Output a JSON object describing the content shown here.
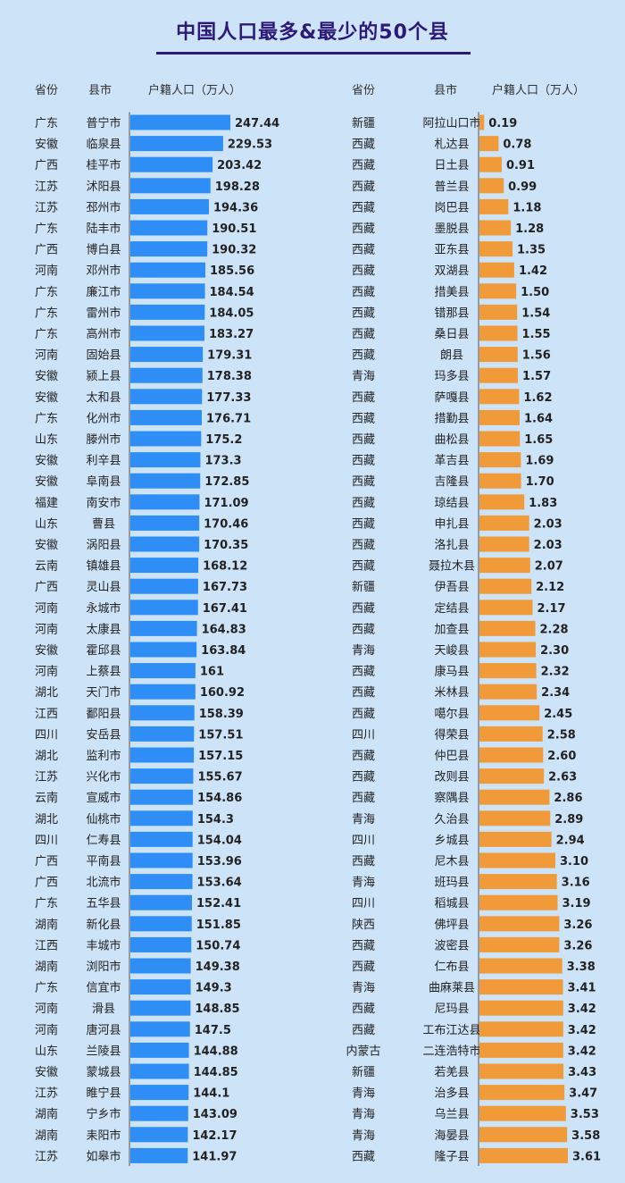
{
  "title": "中国人口最多&最少的50个县",
  "colors": {
    "title": "#2d1a78",
    "background": "#cde3f7",
    "bar_most": "#2f8ef5",
    "bar_least": "#f09a3a",
    "text": "#222222",
    "header": "#333333",
    "axis": "#555555"
  },
  "chart_data": [
    {
      "type": "bar",
      "orientation": "horizontal",
      "headers": [
        "省份",
        "县市",
        "户籍人口（万人）"
      ],
      "provinces": [
        "广东",
        "安徽",
        "广西",
        "江苏",
        "江苏",
        "广东",
        "广西",
        "河南",
        "广东",
        "广东",
        "广东",
        "河南",
        "安徽",
        "安徽",
        "广东",
        "山东",
        "安徽",
        "安徽",
        "福建",
        "山东",
        "安徽",
        "云南",
        "广西",
        "河南",
        "河南",
        "安徽",
        "河南",
        "湖北",
        "江西",
        "四川",
        "湖北",
        "江苏",
        "云南",
        "湖北",
        "四川",
        "广西",
        "广西",
        "广东",
        "湖南",
        "江西",
        "湖南",
        "广东",
        "河南",
        "河南",
        "山东",
        "安徽",
        "江苏",
        "湖南",
        "湖南",
        "江苏"
      ],
      "categories": [
        "普宁市",
        "临泉县",
        "桂平市",
        "沭阳县",
        "邳州市",
        "陆丰市",
        "博白县",
        "邓州市",
        "廉江市",
        "雷州市",
        "高州市",
        "固始县",
        "颍上县",
        "太和县",
        "化州市",
        "滕州市",
        "利辛县",
        "阜南县",
        "南安市",
        "曹县",
        "涡阳县",
        "镇雄县",
        "灵山县",
        "永城市",
        "太康县",
        "霍邱县",
        "上蔡县",
        "天门市",
        "鄱阳县",
        "安岳县",
        "监利市",
        "兴化市",
        "宣威市",
        "仙桃市",
        "仁寿县",
        "平南县",
        "北流市",
        "五华县",
        "新化县",
        "丰城市",
        "浏阳市",
        "信宜市",
        "滑县",
        "唐河县",
        "兰陵县",
        "蒙城县",
        "睢宁县",
        "宁乡市",
        "耒阳市",
        "如皋市"
      ],
      "values": [
        247.44,
        229.53,
        203.42,
        198.28,
        194.36,
        190.51,
        190.32,
        185.56,
        184.54,
        184.05,
        183.27,
        179.31,
        178.38,
        177.33,
        176.71,
        175.2,
        173.3,
        172.85,
        171.09,
        170.46,
        170.35,
        168.12,
        167.73,
        167.41,
        164.83,
        163.84,
        161,
        160.92,
        158.39,
        157.51,
        157.15,
        155.67,
        154.86,
        154.3,
        154.04,
        153.96,
        153.64,
        152.41,
        151.85,
        150.74,
        149.38,
        149.3,
        148.85,
        147.5,
        144.88,
        144.85,
        144.1,
        143.09,
        142.17,
        141.97
      ],
      "value_labels": [
        "247.44",
        "229.53",
        "203.42",
        "198.28",
        "194.36",
        "190.51",
        "190.32",
        "185.56",
        "184.54",
        "184.05",
        "183.27",
        "179.31",
        "178.38",
        "177.33",
        "176.71",
        "175.2",
        "173.3",
        "172.85",
        "171.09",
        "170.46",
        "170.35",
        "168.12",
        "167.73",
        "167.41",
        "164.83",
        "163.84",
        "161",
        "160.92",
        "158.39",
        "157.51",
        "157.15",
        "155.67",
        "154.86",
        "154.3",
        "154.04",
        "153.96",
        "153.64",
        "152.41",
        "151.85",
        "150.74",
        "149.38",
        "149.3",
        "148.85",
        "147.5",
        "144.88",
        "144.85",
        "144.1",
        "143.09",
        "142.17",
        "141.97"
      ],
      "color": "#2f8ef5"
    },
    {
      "type": "bar",
      "orientation": "horizontal",
      "headers": [
        "省份",
        "县市",
        "户籍人口（万人）"
      ],
      "provinces": [
        "新疆",
        "西藏",
        "西藏",
        "西藏",
        "西藏",
        "西藏",
        "西藏",
        "西藏",
        "西藏",
        "西藏",
        "西藏",
        "西藏",
        "青海",
        "西藏",
        "西藏",
        "西藏",
        "西藏",
        "西藏",
        "西藏",
        "西藏",
        "西藏",
        "西藏",
        "新疆",
        "西藏",
        "西藏",
        "青海",
        "西藏",
        "西藏",
        "西藏",
        "四川",
        "西藏",
        "西藏",
        "西藏",
        "青海",
        "四川",
        "西藏",
        "青海",
        "四川",
        "陕西",
        "西藏",
        "西藏",
        "青海",
        "西藏",
        "西藏",
        "内蒙古",
        "新疆",
        "青海",
        "青海",
        "青海",
        "西藏"
      ],
      "categories": [
        "阿拉山口市",
        "札达县",
        "日土县",
        "普兰县",
        "岗巴县",
        "墨脱县",
        "亚东县",
        "双湖县",
        "措美县",
        "错那县",
        "桑日县",
        "朗县",
        "玛多县",
        "萨嘎县",
        "措勤县",
        "曲松县",
        "革吉县",
        "吉隆县",
        "琼结县",
        "申扎县",
        "洛扎县",
        "聂拉木县",
        "伊吾县",
        "定结县",
        "加查县",
        "天峻县",
        "康马县",
        "米林县",
        "噶尔县",
        "得荣县",
        "仲巴县",
        "改则县",
        "察隅县",
        "久治县",
        "乡城县",
        "尼木县",
        "班玛县",
        "稻城县",
        "佛坪县",
        "波密县",
        "仁布县",
        "曲麻莱县",
        "尼玛县",
        "工布江达县",
        "二连浩特市",
        "若羌县",
        "治多县",
        "乌兰县",
        "海晏县",
        "隆子县"
      ],
      "values": [
        0.19,
        0.78,
        0.91,
        0.99,
        1.18,
        1.28,
        1.35,
        1.42,
        1.5,
        1.54,
        1.55,
        1.56,
        1.57,
        1.62,
        1.64,
        1.65,
        1.69,
        1.7,
        1.83,
        2.03,
        2.03,
        2.07,
        2.12,
        2.17,
        2.28,
        2.3,
        2.32,
        2.34,
        2.45,
        2.58,
        2.6,
        2.63,
        2.86,
        2.89,
        2.94,
        3.1,
        3.16,
        3.19,
        3.26,
        3.26,
        3.38,
        3.41,
        3.42,
        3.42,
        3.42,
        3.43,
        3.47,
        3.53,
        3.58,
        3.61
      ],
      "value_labels": [
        "0.19",
        "0.78",
        "0.91",
        "0.99",
        "1.18",
        "1.28",
        "1.35",
        "1.42",
        "1.50",
        "1.54",
        "1.55",
        "1.56",
        "1.57",
        "1.62",
        "1.64",
        "1.65",
        "1.69",
        "1.70",
        "1.83",
        "2.03",
        "2.03",
        "2.07",
        "2.12",
        "2.17",
        "2.28",
        "2.30",
        "2.32",
        "2.34",
        "2.45",
        "2.58",
        "2.60",
        "2.63",
        "2.86",
        "2.89",
        "2.94",
        "3.10",
        "3.16",
        "3.19",
        "3.26",
        "3.26",
        "3.38",
        "3.41",
        "3.42",
        "3.42",
        "3.42",
        "3.43",
        "3.47",
        "3.53",
        "3.58",
        "3.61"
      ],
      "color": "#f09a3a"
    }
  ]
}
